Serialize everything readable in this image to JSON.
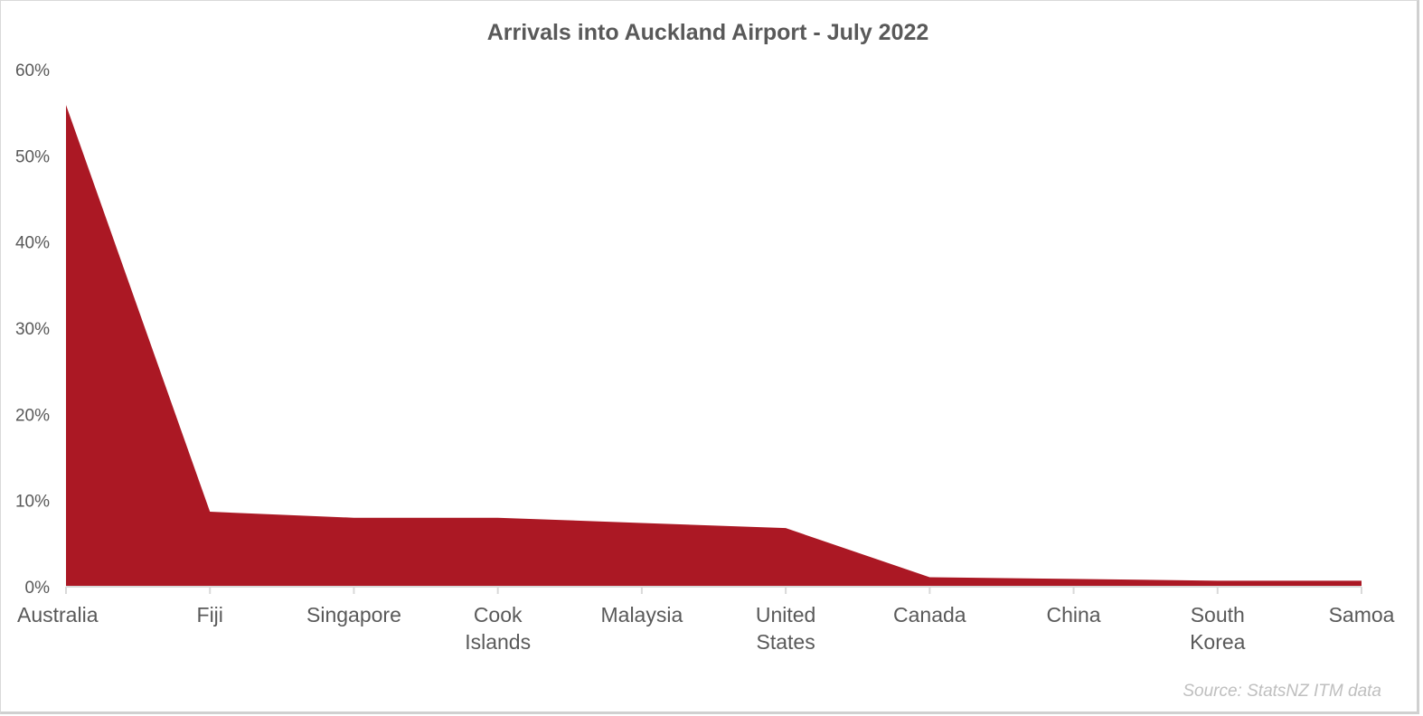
{
  "chart_data": {
    "type": "area",
    "title": "Arrivals into Auckland Airport - July 2022",
    "categories": [
      [
        "Australia"
      ],
      [
        "Fiji"
      ],
      [
        "Singapore"
      ],
      [
        "Cook",
        "Islands"
      ],
      [
        "Malaysia"
      ],
      [
        "United",
        "States"
      ],
      [
        "Canada"
      ],
      [
        "China"
      ],
      [
        "South",
        "Korea"
      ],
      [
        "Samoa"
      ]
    ],
    "values": [
      55.9,
      8.7,
      8.0,
      8.0,
      7.4,
      6.8,
      1.1,
      0.9,
      0.7,
      0.7
    ],
    "yticks": [
      "0%",
      "10%",
      "20%",
      "30%",
      "40%",
      "50%",
      "60%"
    ],
    "ylim": [
      0,
      60
    ],
    "xlabel": "",
    "ylabel": "",
    "grid": false,
    "source": "Source: StatsNZ ITM data",
    "colors": {
      "fill": "#ab1824",
      "text": "#595959",
      "axis": "#d9d9d9"
    }
  }
}
